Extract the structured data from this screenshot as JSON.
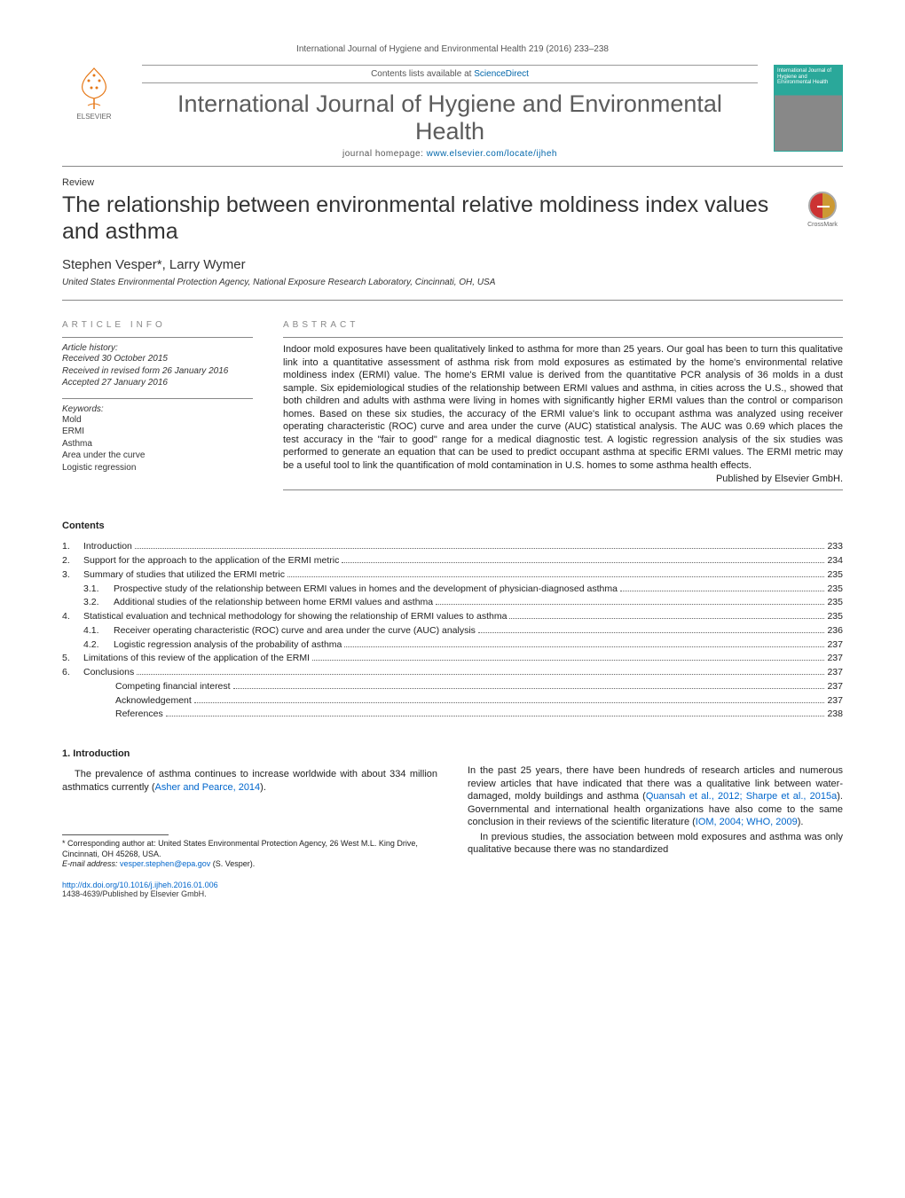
{
  "header": {
    "running_head": "International Journal of Hygiene and Environmental Health 219 (2016) 233–238",
    "contents_available": "Contents lists available at ",
    "sciencedirect": "ScienceDirect",
    "journal_title": "International Journal of Hygiene and Environmental Health",
    "homepage_label": "journal homepage: ",
    "homepage_url": "www.elsevier.com/locate/ijheh",
    "elsevier_label": "ELSEVIER",
    "cover_text": "International Journal of Hygiene and Environmental Health",
    "crossmark_label": "CrossMark"
  },
  "article": {
    "type": "Review",
    "title": "The relationship between environmental relative moldiness index values and asthma",
    "authors": "Stephen Vesper*, Larry Wymer",
    "affiliation": "United States Environmental Protection Agency, National Exposure Research Laboratory, Cincinnati, OH, USA"
  },
  "info": {
    "article_info_label": "article info",
    "history_label": "Article history:",
    "received": "Received 30 October 2015",
    "revised": "Received in revised form 26 January 2016",
    "accepted": "Accepted 27 January 2016",
    "keywords_label": "Keywords:",
    "keywords": [
      "Mold",
      "ERMI",
      "Asthma",
      "Area under the curve",
      "Logistic regression"
    ]
  },
  "abstract": {
    "label": "abstract",
    "text": "Indoor mold exposures have been qualitatively linked to asthma for more than 25 years. Our goal has been to turn this qualitative link into a quantitative assessment of asthma risk from mold exposures as estimated by the home's environmental relative moldiness index (ERMI) value. The home's ERMI value is derived from the quantitative PCR analysis of 36 molds in a dust sample. Six epidemiological studies of the relationship between ERMI values and asthma, in cities across the U.S., showed that both children and adults with asthma were living in homes with significantly higher ERMI values than the control or comparison homes. Based on these six studies, the accuracy of the ERMI value's link to occupant asthma was analyzed using receiver operating characteristic (ROC) curve and area under the curve (AUC) statistical analysis. The AUC was 0.69 which places the test accuracy in the \"fair to good\" range for a medical diagnostic test. A logistic regression analysis of the six studies was performed to generate an equation that can be used to predict occupant asthma at specific ERMI values. The ERMI metric may be a useful tool to link the quantification of mold contamination in U.S. homes to some asthma health effects.",
    "publisher": "Published by Elsevier GmbH."
  },
  "contents": {
    "heading": "Contents",
    "items": [
      {
        "n": "1.",
        "label": "Introduction",
        "page": "233"
      },
      {
        "n": "2.",
        "label": "Support for the approach to the application of the ERMI metric",
        "page": "234"
      },
      {
        "n": "3.",
        "label": "Summary of studies that utilized the ERMI metric",
        "page": "235"
      },
      {
        "n": "3.1.",
        "label": "Prospective study of the relationship between ERMI values in homes and the development of physician-diagnosed asthma",
        "page": "235",
        "sub": 1
      },
      {
        "n": "3.2.",
        "label": "Additional studies of the relationship between home ERMI values and asthma",
        "page": "235",
        "sub": 1
      },
      {
        "n": "4.",
        "label": "Statistical evaluation and technical methodology for showing the relationship of ERMI values to asthma",
        "page": "235"
      },
      {
        "n": "4.1.",
        "label": "Receiver operating characteristic (ROC) curve and area under the curve (AUC) analysis",
        "page": "236",
        "sub": 1
      },
      {
        "n": "4.2.",
        "label": "Logistic regression analysis of the probability of asthma",
        "page": "237",
        "sub": 1
      },
      {
        "n": "5.",
        "label": "Limitations of this review of the application of the ERMI",
        "page": "237"
      },
      {
        "n": "6.",
        "label": "Conclusions",
        "page": "237"
      },
      {
        "n": "",
        "label": "Competing financial interest",
        "page": "237",
        "sub": 2
      },
      {
        "n": "",
        "label": "Acknowledgement",
        "page": "237",
        "sub": 2
      },
      {
        "n": "",
        "label": "References",
        "page": "238",
        "sub": 2
      }
    ]
  },
  "body": {
    "heading1": "1. Introduction",
    "para_left": "The prevalence of asthma continues to increase worldwide with about 334 million asthmatics currently (",
    "ref_left": "Asher and Pearce, 2014",
    "para_left_end": ").",
    "para_right1": "In the past 25 years, there have been hundreds of research articles and numerous review articles that have indicated that there was a qualitative link between water-damaged, moldy buildings and asthma (",
    "ref_right1a": "Quansah et al., 2012; Sharpe et al., 2015a",
    "para_right1_mid": "). Governmental and international health organizations have also come to the same conclusion in their reviews of the scientific literature (",
    "ref_right1b": "IOM, 2004; WHO, 2009",
    "para_right1_end": ").",
    "para_right2": "In previous studies, the association between mold exposures and asthma was only qualitative because there was no standardized"
  },
  "footnotes": {
    "corresp_label": "* Corresponding author at: United States Environmental Protection Agency, 26 West M.L. King Drive, Cincinnati, OH 45268, USA.",
    "email_label": "E-mail address: ",
    "email": "vesper.stephen@epa.gov",
    "email_name": " (S. Vesper).",
    "doi": "http://dx.doi.org/10.1016/j.ijheh.2016.01.006",
    "issn": "1438-4639/Published by Elsevier GmbH."
  },
  "style": {
    "link_color": "#0066cc",
    "text_color": "#222222",
    "gray": "#888888",
    "fontsize_body": 11,
    "fontsize_small": 10,
    "fontsize_title": 25,
    "fontsize_journal": 27
  }
}
